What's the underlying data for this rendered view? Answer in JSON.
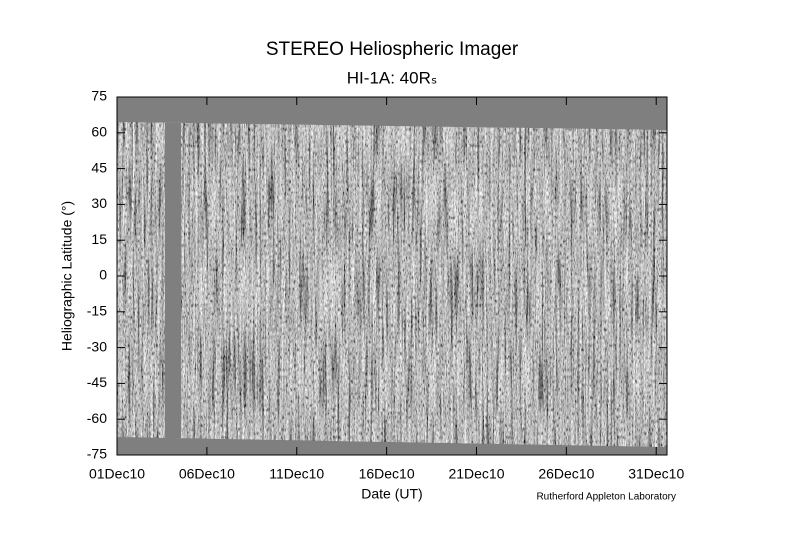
{
  "chart_data": {
    "type": "heatmap",
    "title": "STEREO Heliospheric Imager",
    "subtitle": "HI-1A: 40Rₛ",
    "x_label": "Date (UT)",
    "y_label": "Heliographic Latitude (°)",
    "credit": "Rutherford Appleton Laboratory",
    "xlim": [
      1,
      31.6
    ],
    "xticks": [
      {
        "value": 1,
        "label": "01Dec10"
      },
      {
        "value": 6,
        "label": "06Dec10"
      },
      {
        "value": 11,
        "label": "11Dec10"
      },
      {
        "value": 16,
        "label": "16Dec10"
      },
      {
        "value": 21,
        "label": "21Dec10"
      },
      {
        "value": 26,
        "label": "26Dec10"
      },
      {
        "value": 31,
        "label": "31Dec10"
      }
    ],
    "ylim": [
      -75,
      75
    ],
    "yticks": [
      -75,
      -60,
      -45,
      -30,
      -15,
      0,
      15,
      30,
      45,
      60,
      75
    ]
  }
}
